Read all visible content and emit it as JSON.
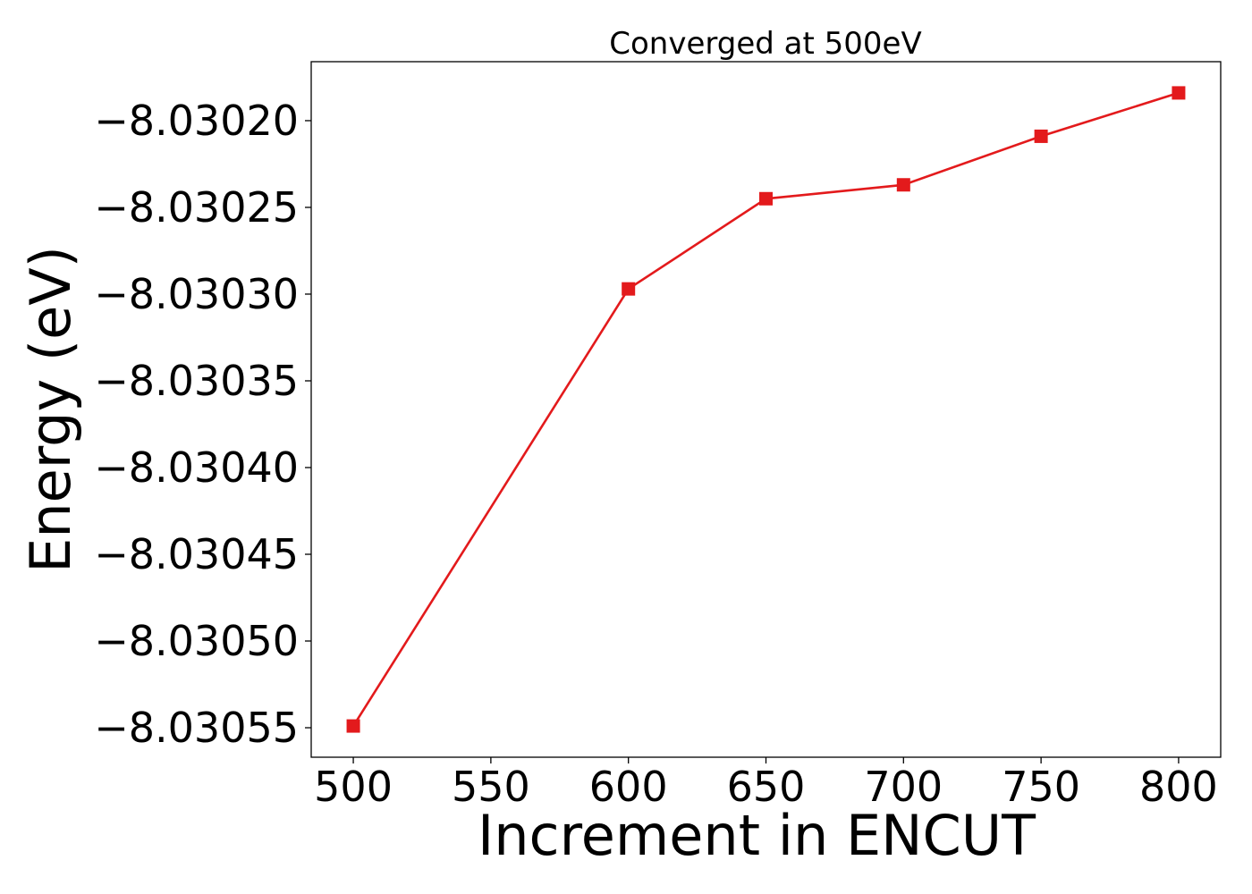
{
  "chart_data": {
    "type": "line",
    "title": "Converged at 500eV",
    "xlabel": "Increment in ENCUT",
    "ylabel": "Energy (eV)",
    "x": [
      500,
      600,
      650,
      700,
      750,
      800
    ],
    "series": [
      {
        "values": [
          -8.030549,
          -8.030297,
          -8.030245,
          -8.030237,
          -8.030209,
          -8.030184
        ],
        "color": "#e31a1c",
        "marker": "square"
      }
    ],
    "xticks": [
      500,
      550,
      600,
      650,
      700,
      750,
      800
    ],
    "xtick_labels": [
      "500",
      "550",
      "600",
      "650",
      "700",
      "750",
      "800"
    ],
    "yticks": [
      -8.03055,
      -8.0305,
      -8.03045,
      -8.0304,
      -8.03035,
      -8.0303,
      -8.03025,
      -8.0302
    ],
    "ytick_labels": [
      "−8.03055",
      "−8.03050",
      "−8.03045",
      "−8.03040",
      "−8.03035",
      "−8.03030",
      "−8.03025",
      "−8.03020"
    ],
    "xlim": [
      484.7,
      815.3
    ],
    "ylim": [
      -8.030567,
      -8.030166
    ],
    "grid": false,
    "legend": "none"
  }
}
